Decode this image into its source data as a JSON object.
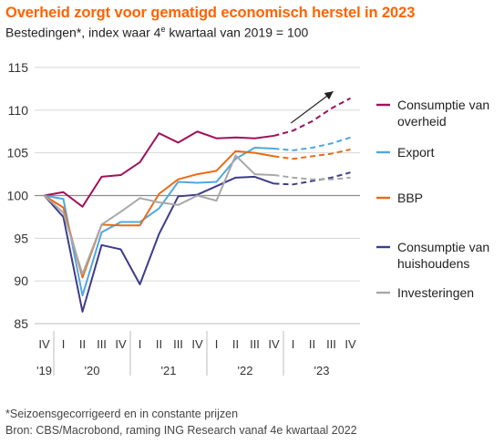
{
  "title": "Overheid zorgt voor gematigd economisch herstel in 2023",
  "subtitle": {
    "before": "Bestedingen*, index waar 4",
    "sup": "e",
    "after": " kwartaal van 2019 = 100"
  },
  "footnotes": [
    "*Seizoensgecorrigeerd en in constante prijzen",
    "Bron: CBS/Macrobond, raming ING Research vanaf 4e kwartaal  2022"
  ],
  "chart_data": {
    "type": "line",
    "title": "Overheid zorgt voor gematigd economisch herstel in 2023",
    "ylim": [
      85,
      115
    ],
    "yticks": [
      85,
      90,
      95,
      100,
      105,
      110,
      115
    ],
    "reference_line": 100,
    "quarters": [
      "IV",
      "I",
      "II",
      "III",
      "IV",
      "I",
      "II",
      "III",
      "IV",
      "I",
      "II",
      "III",
      "IV",
      "I",
      "II",
      "III",
      "IV"
    ],
    "years": [
      {
        "label": "'19",
        "start": 0,
        "end": 0
      },
      {
        "label": "'20",
        "start": 1,
        "end": 4
      },
      {
        "label": "'21",
        "start": 5,
        "end": 8
      },
      {
        "label": "'22",
        "start": 9,
        "end": 12
      },
      {
        "label": "'23",
        "start": 13,
        "end": 16
      }
    ],
    "forecast_from_index": 12,
    "arrow": {
      "from": {
        "x": 13.4,
        "y": 108.5
      },
      "to": {
        "x": 15.6,
        "y": 112.2
      }
    },
    "legend_position": "right",
    "series": [
      {
        "name": "Consumptie van overheid",
        "legend_lines": [
          "Consumptie van",
          "overheid"
        ],
        "color": "#a0105a",
        "values": [
          100,
          100.4,
          98.7,
          102.2,
          102.4,
          103.9,
          107.3,
          106.2,
          107.5,
          106.7,
          106.8,
          106.7,
          107.0,
          107.6,
          108.7,
          110.2,
          111.4
        ]
      },
      {
        "name": "Export",
        "legend_lines": [
          "Export"
        ],
        "color": "#4fa8e0",
        "values": [
          100,
          99.6,
          88.3,
          95.7,
          96.9,
          96.9,
          98.5,
          101.6,
          101.5,
          101.6,
          104.3,
          105.6,
          105.5,
          105.3,
          105.6,
          106.1,
          106.8
        ]
      },
      {
        "name": "BBP",
        "legend_lines": [
          "BBP"
        ],
        "color": "#ed6a15",
        "values": [
          100,
          98.6,
          90.4,
          96.6,
          96.5,
          96.5,
          100.2,
          101.9,
          102.5,
          102.9,
          105.2,
          105.0,
          104.6,
          104.3,
          104.6,
          104.9,
          105.4
        ]
      },
      {
        "name": "Consumptie van huishoudens",
        "legend_lines": [
          "Consumptie van",
          "huishoudens"
        ],
        "color": "#3f3c8c",
        "values": [
          100,
          97.5,
          86.4,
          94.2,
          93.7,
          89.6,
          95.5,
          99.9,
          100.1,
          101.1,
          102.1,
          102.2,
          101.4,
          101.3,
          101.7,
          102.1,
          102.7
        ]
      },
      {
        "name": "Investeringen",
        "legend_lines": [
          "Investeringen"
        ],
        "color": "#a8a8a8",
        "values": [
          100,
          98.0,
          90.8,
          96.6,
          98.1,
          99.7,
          99.2,
          98.9,
          100.0,
          99.4,
          104.7,
          102.5,
          102.4,
          102.1,
          101.9,
          101.9,
          102.1
        ]
      }
    ]
  }
}
